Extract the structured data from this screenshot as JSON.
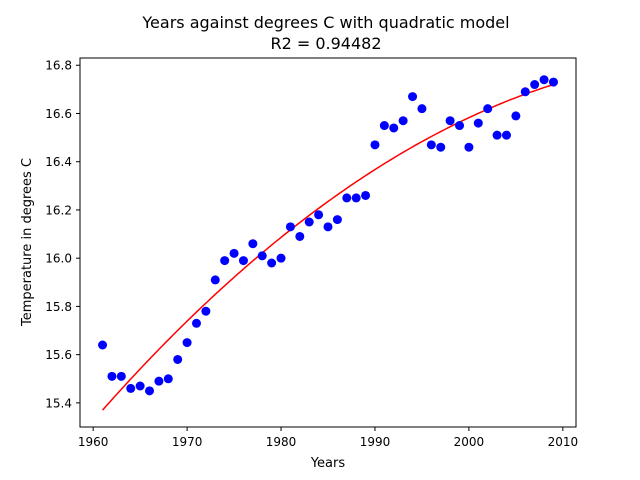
{
  "chart_data": {
    "type": "scatter",
    "title": "Years against degrees C with quadratic model",
    "subtitle": "R2 = 0.94482",
    "xlabel": "Years",
    "ylabel": "Temperature in degrees C",
    "xlim": [
      1958.6,
      2011.4
    ],
    "ylim": [
      15.3,
      16.83
    ],
    "xticks": [
      1960,
      1970,
      1980,
      1990,
      2000,
      2010
    ],
    "yticks": [
      15.4,
      15.6,
      15.8,
      16.0,
      16.2,
      16.4,
      16.6,
      16.8
    ],
    "grid": false,
    "colors": {
      "points": "#0000ff",
      "model": "#ff0000",
      "axes": "#000000"
    },
    "series": [
      {
        "type": "scatter",
        "x": [
          1961,
          1962,
          1963,
          1964,
          1965,
          1966,
          1967,
          1968,
          1969,
          1970,
          1971,
          1972,
          1973,
          1974,
          1975,
          1976,
          1977,
          1978,
          1979,
          1980,
          1981,
          1982,
          1983,
          1984,
          1985,
          1986,
          1987,
          1988,
          1989,
          1990,
          1991,
          1992,
          1993,
          1994,
          1995,
          1996,
          1997,
          1998,
          1999,
          2000,
          2001,
          2002,
          2003,
          2004,
          2005,
          2006,
          2007,
          2008,
          2009
        ],
        "y": [
          15.64,
          15.51,
          15.51,
          15.46,
          15.47,
          15.45,
          15.49,
          15.5,
          15.58,
          15.65,
          15.73,
          15.78,
          15.91,
          15.99,
          16.02,
          15.99,
          16.06,
          16.01,
          15.98,
          16.0,
          16.13,
          16.09,
          16.15,
          16.18,
          16.13,
          16.16,
          16.25,
          16.25,
          16.26,
          16.47,
          16.55,
          16.54,
          16.57,
          16.67,
          16.62,
          16.47,
          16.46,
          16.57,
          16.55,
          16.46,
          16.56,
          16.62,
          16.51,
          16.51,
          16.59,
          16.69,
          16.72,
          16.74,
          16.73
        ]
      },
      {
        "type": "line",
        "model": "quadratic",
        "x": [
          1961,
          1985,
          2009
        ],
        "y": [
          15.37,
          16.235,
          16.72
        ]
      }
    ]
  }
}
